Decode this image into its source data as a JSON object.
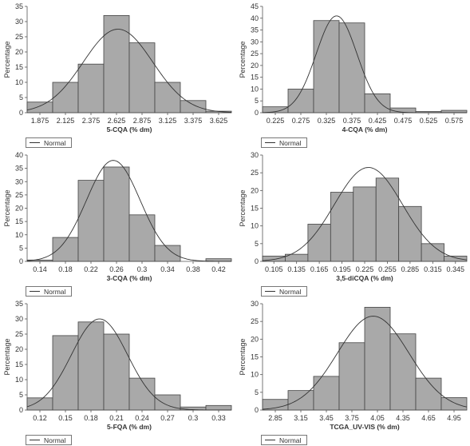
{
  "legend_label": "Normal",
  "ylabel": "Percentage",
  "chart_data": [
    {
      "type": "bar",
      "xlabel": "5-CQA (% dm)",
      "ylabel": "Percentage",
      "tick_labels": [
        "1.875",
        "2.125",
        "2.375",
        "2.625",
        "2.875",
        "3.125",
        "3.375",
        "3.625"
      ],
      "bin_edges": [
        1.75,
        2.0,
        2.25,
        2.5,
        2.75,
        3.0,
        3.25,
        3.5,
        3.75
      ],
      "values": [
        3.5,
        10,
        16,
        32,
        23,
        10,
        4,
        0.5
      ],
      "ylim": [
        0,
        35
      ],
      "yticks": [
        0,
        5,
        10,
        15,
        20,
        25,
        30,
        35
      ],
      "normal": {
        "mean": 2.64,
        "peak": 27.5,
        "sd": 0.34
      }
    },
    {
      "type": "bar",
      "xlabel": "4-CQA (% dm)",
      "ylabel": "Percentage",
      "tick_labels": [
        "0.225",
        "0.275",
        "0.325",
        "0.375",
        "0.425",
        "0.475",
        "0.525",
        "0.575"
      ],
      "bin_edges": [
        0.2,
        0.25,
        0.3,
        0.35,
        0.4,
        0.45,
        0.5,
        0.55,
        0.6
      ],
      "values": [
        2.5,
        10,
        39,
        38,
        8,
        2,
        0.5,
        1
      ],
      "ylim": [
        0,
        45
      ],
      "yticks": [
        0,
        5,
        10,
        15,
        20,
        25,
        30,
        35,
        40,
        45
      ],
      "normal": {
        "mean": 0.345,
        "peak": 41,
        "sd": 0.04
      }
    },
    {
      "type": "bar",
      "xlabel": "3-CQA (% dm)",
      "ylabel": "Percentage",
      "tick_labels": [
        "0.14",
        "0.18",
        "0.22",
        "0.26",
        "0.3",
        "0.34",
        "0.38",
        "0.42"
      ],
      "bin_edges": [
        0.12,
        0.16,
        0.2,
        0.24,
        0.28,
        0.32,
        0.36,
        0.4,
        0.44
      ],
      "values": [
        0.5,
        9,
        30.5,
        35.5,
        17.5,
        6,
        0,
        1
      ],
      "ylim": [
        0,
        40
      ],
      "yticks": [
        0,
        5,
        10,
        15,
        20,
        25,
        30,
        35,
        40
      ],
      "normal": {
        "mean": 0.255,
        "peak": 38,
        "sd": 0.042
      }
    },
    {
      "type": "bar",
      "xlabel": "3,5-diCQA (% dm)",
      "ylabel": "Percentage",
      "tick_labels": [
        "0.105",
        "0.135",
        "0.165",
        "0.195",
        "0.225",
        "0.255",
        "0.285",
        "0.315",
        "0.345"
      ],
      "bin_edges": [
        0.09,
        0.12,
        0.15,
        0.18,
        0.21,
        0.24,
        0.27,
        0.3,
        0.33,
        0.36
      ],
      "values": [
        1.5,
        2,
        10.5,
        19.5,
        21,
        23.5,
        15.5,
        5,
        1.5
      ],
      "ylim": [
        0,
        30
      ],
      "yticks": [
        0,
        5,
        10,
        15,
        20,
        25,
        30
      ],
      "normal": {
        "mean": 0.23,
        "peak": 26.5,
        "sd": 0.045
      }
    },
    {
      "type": "bar",
      "xlabel": "5-FQA (% dm)",
      "ylabel": "Percentage",
      "tick_labels": [
        "0.12",
        "0.15",
        "0.18",
        "0.21",
        "0.24",
        "0.27",
        "0.3",
        "0.33"
      ],
      "bin_edges": [
        0.105,
        0.135,
        0.165,
        0.195,
        0.225,
        0.255,
        0.285,
        0.315,
        0.345
      ],
      "values": [
        4,
        24.5,
        29,
        25,
        10.5,
        5,
        1,
        1.5
      ],
      "ylim": [
        0,
        35
      ],
      "yticks": [
        0,
        5,
        10,
        15,
        20,
        25,
        30,
        35
      ],
      "normal": {
        "mean": 0.19,
        "peak": 30,
        "sd": 0.033
      }
    },
    {
      "type": "bar",
      "xlabel": "TCGA_UV-VIS (% dm)",
      "ylabel": "Percentage",
      "tick_labels": [
        "2.85",
        "3.15",
        "3.45",
        "3.75",
        "4.05",
        "4.35",
        "4.65",
        "4.95"
      ],
      "bin_edges": [
        2.7,
        3.0,
        3.3,
        3.6,
        3.9,
        4.2,
        4.5,
        4.8,
        5.1
      ],
      "values": [
        3,
        5.5,
        9.5,
        19,
        29,
        21.5,
        9,
        3.5
      ],
      "ylim": [
        0,
        30
      ],
      "yticks": [
        0,
        5,
        10,
        15,
        20,
        25,
        30
      ],
      "normal": {
        "mean": 4.0,
        "peak": 26.5,
        "sd": 0.42
      }
    }
  ]
}
